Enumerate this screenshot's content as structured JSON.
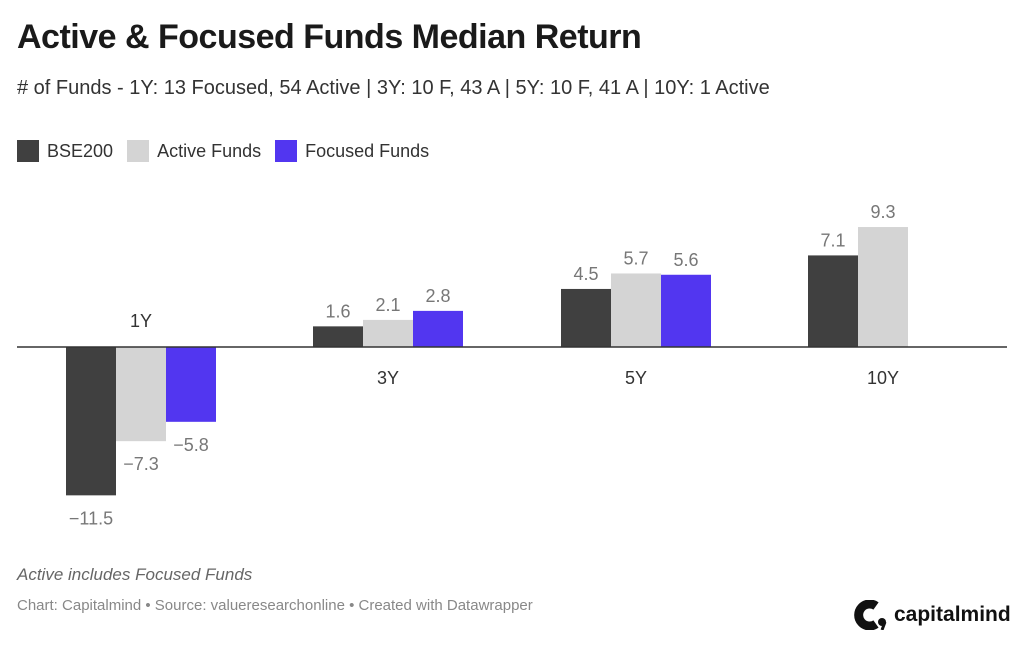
{
  "title": "Active & Focused Funds Median Return",
  "subtitle": "# of Funds - 1Y: 13 Focused, 54 Active | 3Y: 10 F, 43 A | 5Y: 10 F, 41 A | 10Y: 1 Active",
  "note": "Active includes Focused Funds",
  "credit": "Chart: Capitalmind • Source: valueresearchonline • Created with Datawrapper",
  "logo": "capitalmind",
  "chart_data": {
    "type": "bar",
    "categories": [
      "1Y",
      "3Y",
      "5Y",
      "10Y"
    ],
    "series": [
      {
        "name": "BSE200",
        "color": "#404040",
        "values": [
          -11.5,
          1.6,
          4.5,
          7.1
        ]
      },
      {
        "name": "Active Funds",
        "color": "#d4d4d4",
        "values": [
          -7.3,
          2.1,
          5.7,
          9.3
        ]
      },
      {
        "name": "Focused Funds",
        "color": "#5236f0",
        "values": [
          -5.8,
          2.8,
          5.6,
          null
        ]
      }
    ],
    "value_labels": {
      "1Y": [
        "−11.5",
        "−7.3",
        "−5.8"
      ],
      "3Y": [
        "1.6",
        "2.1",
        "2.8"
      ],
      "5Y": [
        "4.5",
        "5.7",
        "5.6"
      ],
      "10Y": [
        "7.1",
        "9.3"
      ]
    },
    "legend": "top-left",
    "grid": false
  }
}
